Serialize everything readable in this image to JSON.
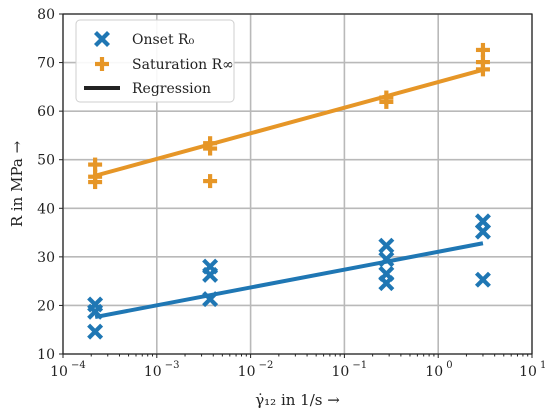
{
  "chart_data": {
    "type": "scatter",
    "xscale": "log",
    "xlim": [
      0.0001,
      10
    ],
    "ylim": [
      10,
      80
    ],
    "grid": true,
    "legend_position": "top-left",
    "xlabel": "γ̇₁₂ in 1/s →",
    "ylabel": "R in MPa →",
    "x_ticks": [
      0.0001,
      0.001,
      0.01,
      0.1,
      1,
      10
    ],
    "x_tick_labels": [
      "10",
      "10",
      "10",
      "10",
      "10",
      "10"
    ],
    "x_tick_exponents": [
      "−4",
      "−3",
      "−2",
      "−1",
      "0",
      "1"
    ],
    "y_ticks": [
      10,
      20,
      30,
      40,
      50,
      60,
      70,
      80
    ],
    "y_tick_labels": [
      "10",
      "20",
      "30",
      "40",
      "50",
      "60",
      "70",
      "80"
    ],
    "series": [
      {
        "name": "Onset R₀",
        "marker": "x",
        "color": "#1f77b4",
        "points": [
          [
            0.00022,
            20.2
          ],
          [
            0.00022,
            18.7
          ],
          [
            0.00022,
            14.6
          ],
          [
            0.0037,
            28.0
          ],
          [
            0.0037,
            26.3
          ],
          [
            0.0037,
            21.3
          ],
          [
            0.28,
            32.3
          ],
          [
            0.28,
            29.5
          ],
          [
            0.28,
            26.5
          ],
          [
            0.28,
            24.6
          ],
          [
            3.0,
            37.3
          ],
          [
            3.0,
            35.2
          ],
          [
            3.0,
            25.3
          ]
        ]
      },
      {
        "name": "Saturation R∞",
        "marker": "plus",
        "color": "#e69627",
        "points": [
          [
            0.00022,
            49.0
          ],
          [
            0.00022,
            46.5
          ],
          [
            0.00022,
            45.4
          ],
          [
            0.0037,
            53.4
          ],
          [
            0.0037,
            52.3
          ],
          [
            0.0037,
            45.6
          ],
          [
            0.28,
            62.8
          ],
          [
            0.28,
            61.9
          ],
          [
            3.0,
            72.6
          ],
          [
            3.0,
            70.1
          ],
          [
            3.0,
            68.6
          ]
        ]
      }
    ],
    "regression": {
      "name": "Regression",
      "legend_color": "#222222",
      "lines": [
        {
          "series": "Onset R₀",
          "color": "#1f77b4",
          "x": [
            0.00022,
            3.0
          ],
          "y": [
            17.6,
            32.8
          ]
        },
        {
          "series": "Saturation R∞",
          "color": "#e69627",
          "x": [
            0.00022,
            3.0
          ],
          "y": [
            46.7,
            68.5
          ]
        }
      ]
    }
  }
}
